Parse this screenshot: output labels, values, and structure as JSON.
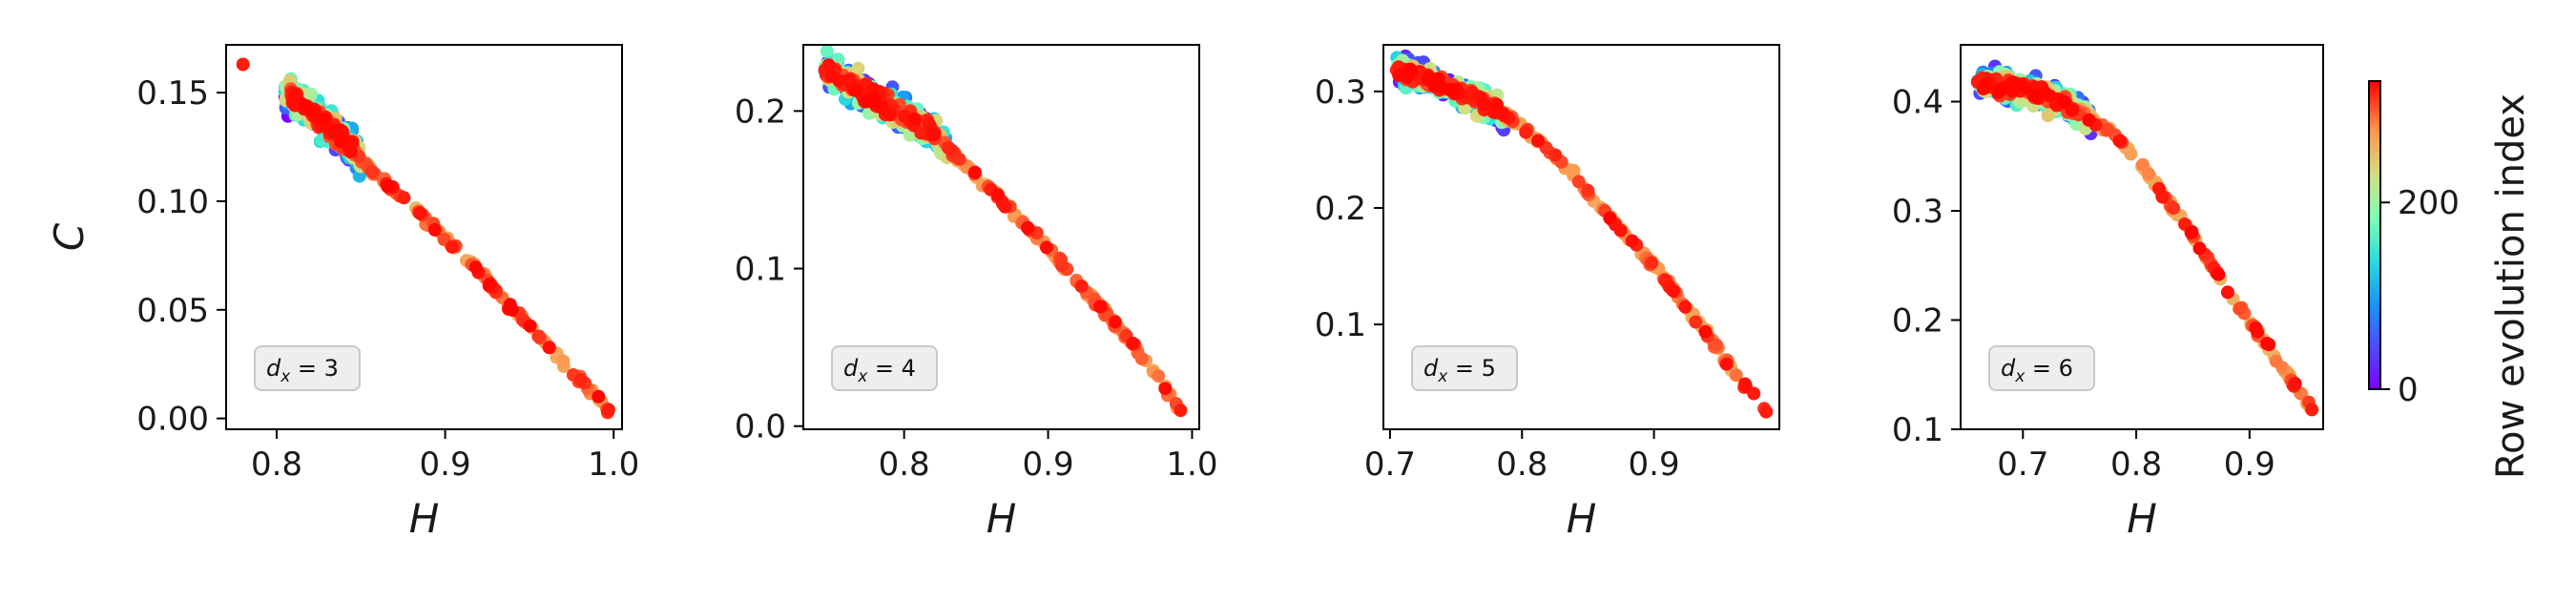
{
  "chart_data": [
    {
      "type": "scatter",
      "xlabel": "H",
      "ylabel": "C",
      "xlim": [
        0.77,
        1.005
      ],
      "ylim": [
        -0.005,
        0.172
      ],
      "xticks": [
        0.8,
        0.9,
        1.0
      ],
      "xtick_labels": [
        "0.8",
        "0.9",
        "1.0"
      ],
      "yticks": [
        0.0,
        0.05,
        0.1,
        0.15
      ],
      "ytick_labels": [
        "0.00",
        "0.05",
        "0.10",
        "0.15"
      ],
      "annotation": {
        "var": "d",
        "sub": "x",
        "eq": " = 3"
      },
      "cluster": {
        "x": [
          0.805,
          0.85
        ],
        "slope": -0.55,
        "xmid": 0.82,
        "ymid": 0.147,
        "spread": 0.007
      },
      "trail": [
        [
          0.78,
          0.163
        ],
        [
          0.8,
          0.152
        ],
        [
          0.82,
          0.142
        ],
        [
          0.84,
          0.128
        ],
        [
          0.86,
          0.112
        ],
        [
          0.88,
          0.098
        ],
        [
          0.9,
          0.083
        ],
        [
          0.92,
          0.068
        ],
        [
          0.94,
          0.05
        ],
        [
          0.96,
          0.034
        ],
        [
          0.98,
          0.018
        ],
        [
          0.997,
          0.004
        ]
      ]
    },
    {
      "type": "scatter",
      "xlabel": "H",
      "ylabel": "",
      "xlim": [
        0.73,
        1.005
      ],
      "ylim": [
        -0.002,
        0.242
      ],
      "xticks": [
        0.8,
        0.9,
        1.0
      ],
      "xtick_labels": [
        "0.8",
        "0.9",
        "1.0"
      ],
      "yticks": [
        0.0,
        0.1,
        0.2
      ],
      "ytick_labels": [
        "0.0",
        "0.1",
        "0.2"
      ],
      "annotation": {
        "var": "d",
        "sub": "x",
        "eq": " = 4"
      },
      "cluster": {
        "x": [
          0.745,
          0.83
        ],
        "slope": -0.55,
        "xmid": 0.78,
        "ymid": 0.207,
        "spread": 0.01
      },
      "trail": [
        [
          0.745,
          0.226
        ],
        [
          0.78,
          0.208
        ],
        [
          0.8,
          0.197
        ],
        [
          0.82,
          0.186
        ],
        [
          0.84,
          0.168
        ],
        [
          0.86,
          0.15
        ],
        [
          0.88,
          0.132
        ],
        [
          0.9,
          0.112
        ],
        [
          0.92,
          0.092
        ],
        [
          0.94,
          0.072
        ],
        [
          0.96,
          0.05
        ],
        [
          0.98,
          0.026
        ],
        [
          0.992,
          0.01
        ]
      ]
    },
    {
      "type": "scatter",
      "xlabel": "H",
      "ylabel": "",
      "xlim": [
        0.695,
        0.995
      ],
      "ylim": [
        0.01,
        0.34
      ],
      "xticks": [
        0.7,
        0.8,
        0.9
      ],
      "xtick_labels": [
        "0.7",
        "0.8",
        "0.9"
      ],
      "yticks": [
        0.1,
        0.2,
        0.3
      ],
      "ytick_labels": [
        "0.1",
        "0.2",
        "0.3"
      ],
      "annotation": {
        "var": "d",
        "sub": "x",
        "eq": " = 5"
      },
      "cluster": {
        "x": [
          0.705,
          0.79
        ],
        "slope": -0.6,
        "xmid": 0.74,
        "ymid": 0.305,
        "spread": 0.012
      },
      "trail": [
        [
          0.71,
          0.318
        ],
        [
          0.74,
          0.305
        ],
        [
          0.76,
          0.295
        ],
        [
          0.78,
          0.285
        ],
        [
          0.8,
          0.27
        ],
        [
          0.82,
          0.25
        ],
        [
          0.84,
          0.228
        ],
        [
          0.86,
          0.2
        ],
        [
          0.88,
          0.175
        ],
        [
          0.9,
          0.15
        ],
        [
          0.92,
          0.122
        ],
        [
          0.94,
          0.093
        ],
        [
          0.96,
          0.06
        ],
        [
          0.985,
          0.025
        ]
      ]
    },
    {
      "type": "scatter",
      "xlabel": "H",
      "ylabel": "",
      "xlim": [
        0.645,
        0.965
      ],
      "ylim": [
        0.1,
        0.452
      ],
      "xticks": [
        0.7,
        0.8,
        0.9
      ],
      "xtick_labels": [
        "0.7",
        "0.8",
        "0.9"
      ],
      "yticks": [
        0.1,
        0.2,
        0.3,
        0.4
      ],
      "ytick_labels": [
        "0.1",
        "0.2",
        "0.3",
        "0.4"
      ],
      "annotation": {
        "var": "d",
        "sub": "x",
        "eq": " = 6"
      },
      "cluster": {
        "x": [
          0.66,
          0.76
        ],
        "slope": -0.3,
        "xmid": 0.7,
        "ymid": 0.412,
        "spread": 0.012
      },
      "trail": [
        [
          0.66,
          0.418
        ],
        [
          0.7,
          0.412
        ],
        [
          0.72,
          0.405
        ],
        [
          0.74,
          0.398
        ],
        [
          0.76,
          0.385
        ],
        [
          0.78,
          0.37
        ],
        [
          0.8,
          0.348
        ],
        [
          0.82,
          0.32
        ],
        [
          0.84,
          0.292
        ],
        [
          0.86,
          0.262
        ],
        [
          0.88,
          0.228
        ],
        [
          0.9,
          0.2
        ],
        [
          0.92,
          0.17
        ],
        [
          0.94,
          0.14
        ],
        [
          0.955,
          0.118
        ]
      ]
    }
  ],
  "colorbar": {
    "label": "Row evolution index",
    "min": 0,
    "max": 330,
    "ticks": [
      0,
      200
    ],
    "tick_labels": [
      "0",
      "200"
    ],
    "colormap": "rainbow"
  },
  "colors": {
    "axis": "#000000",
    "annotation_fill": "#eeeeee",
    "annotation_stroke": "#c8c8c8"
  }
}
